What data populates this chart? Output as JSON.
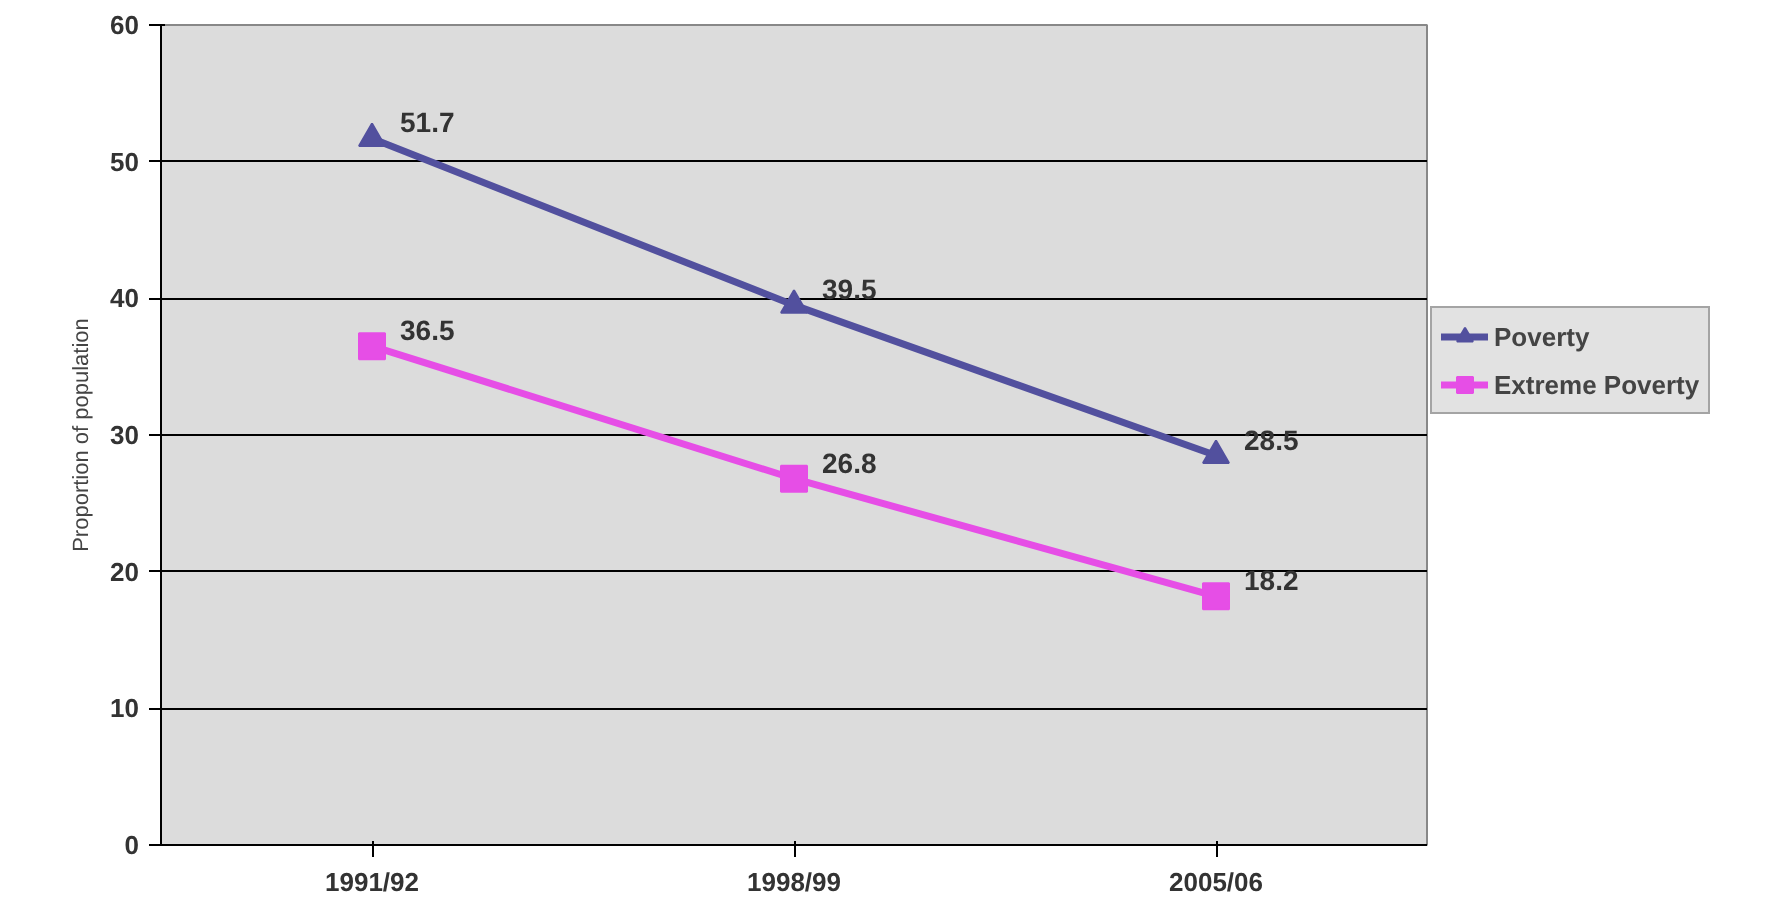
{
  "chart_data": {
    "type": "line",
    "ylabel": "Proportion of population",
    "categories": [
      "1991/92",
      "1998/99",
      "2005/06"
    ],
    "series": [
      {
        "name": "Poverty",
        "color": "#52509e",
        "values": [
          51.7,
          39.5,
          28.5
        ],
        "marker": "triangle"
      },
      {
        "name": "Extreme Poverty",
        "color": "#e64ee6",
        "values": [
          36.5,
          26.8,
          18.2
        ],
        "marker": "square"
      }
    ],
    "ylim": [
      0,
      60
    ],
    "yticks": [
      0,
      10,
      20,
      30,
      40,
      50,
      60
    ],
    "grid": "y",
    "legend": "right",
    "data_labels": true,
    "line_style": "solid"
  }
}
